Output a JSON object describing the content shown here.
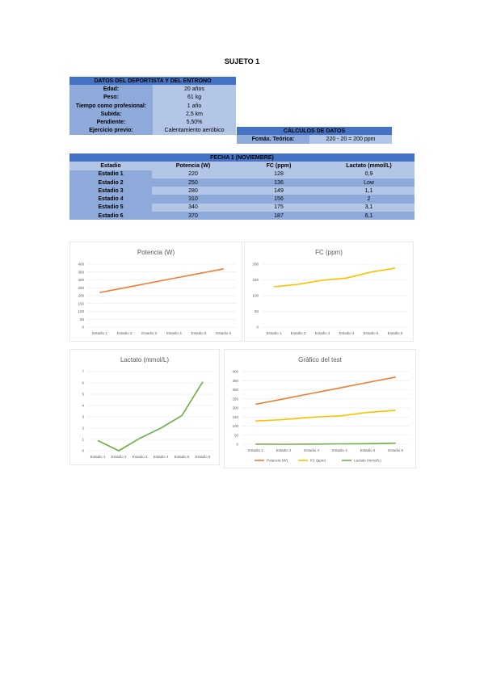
{
  "title": "SUJETO 1",
  "athlete": {
    "header": "DATOS DEL DEPORTISTA Y DEL ENTRONO",
    "rows": [
      {
        "label": "Edad:",
        "value": "20 años"
      },
      {
        "label": "Peso:",
        "value": "61 kg"
      },
      {
        "label": "Tiempo como profesional:",
        "value": "1 año"
      },
      {
        "label": "Subida:",
        "value": "2,5 km"
      },
      {
        "label": "Pendiente:",
        "value": "5,50%"
      },
      {
        "label": "Ejercicio previo:",
        "value": "Calentamiento aeróbico"
      }
    ]
  },
  "calc": {
    "header": "CÁLCULOS DE DATOS",
    "label": "Fcmáx. Teórica:",
    "value": "220 - 20 = 200 ppm"
  },
  "test": {
    "header": "FECHA 1 (NOVIEMBRE)",
    "columns": [
      "Estadio",
      "Potencia (W)",
      "FC (ppm)",
      "Lactato (mmol/L)"
    ],
    "rows": [
      [
        "Estadio 1",
        "220",
        "128",
        "0,9"
      ],
      [
        "Estadio 2",
        "250",
        "136",
        "Low"
      ],
      [
        "Estadio 3",
        "280",
        "149",
        "1,1"
      ],
      [
        "Estadio 4",
        "310",
        "156",
        "2"
      ],
      [
        "Estadio 5",
        "340",
        "175",
        "3,1"
      ],
      [
        "Estadio 6",
        "370",
        "187",
        "6,1"
      ]
    ]
  },
  "colors": {
    "potencia": "#ed7d31",
    "fc": "#ffc000",
    "lactato": "#70ad47"
  },
  "chart_data": [
    {
      "type": "line",
      "title": "Potencia (W)",
      "categories": [
        "Estadio 1",
        "Estadio 2",
        "Estadio 3",
        "Estadio 4",
        "Estadio 5",
        "Estadio 6"
      ],
      "yticks": [
        "0",
        "50",
        "100",
        "150",
        "200",
        "250",
        "300",
        "350",
        "400"
      ],
      "ylim": [
        0,
        400
      ],
      "series": [
        {
          "values": [
            220,
            250,
            280,
            310,
            340,
            370
          ]
        }
      ],
      "grid": true
    },
    {
      "type": "line",
      "title": "FC (ppm)",
      "categories": [
        "Estadio 1",
        "Estadio 2",
        "Estadio 3",
        "Estadio 4",
        "Estadio 5",
        "Estadio 6"
      ],
      "yticks": [
        "0",
        "50",
        "100",
        "150",
        "200"
      ],
      "ylim": [
        0,
        200
      ],
      "series": [
        {
          "values": [
            128,
            136,
            149,
            156,
            175,
            187
          ]
        }
      ],
      "grid": true
    },
    {
      "type": "line",
      "title": "Lactato (mmol/L)",
      "categories": [
        "Estadio 1",
        "Estadio 2",
        "Estadio 3",
        "Estadio 4",
        "Estadio 5",
        "Estadio 6"
      ],
      "yticks": [
        "0",
        "1",
        "2",
        "3",
        "4",
        "5",
        "6",
        "7"
      ],
      "ylim": [
        0,
        7
      ],
      "series": [
        {
          "values": [
            0.9,
            0,
            1.1,
            2,
            3.1,
            6.1
          ]
        }
      ],
      "grid": true
    },
    {
      "type": "line",
      "title": "Gráfico del test",
      "categories": [
        "Estadio 1",
        "Estadio 2",
        "Estadio 3",
        "Estadio 4",
        "Estadio 5",
        "Estadio 6"
      ],
      "yticks": [
        "0",
        "50",
        "100",
        "150",
        "200",
        "250",
        "300",
        "350",
        "400"
      ],
      "ylim": [
        0,
        400
      ],
      "series": [
        {
          "name": "Potencia (W)",
          "values": [
            220,
            250,
            280,
            310,
            340,
            370
          ]
        },
        {
          "name": "FC (ppm)",
          "values": [
            128,
            136,
            149,
            156,
            175,
            187
          ]
        },
        {
          "name": "Lactato (mmol/L)",
          "values": [
            0.9,
            0,
            1.1,
            2,
            3.1,
            6.1
          ]
        }
      ],
      "legend": "bottom",
      "grid": true
    }
  ]
}
